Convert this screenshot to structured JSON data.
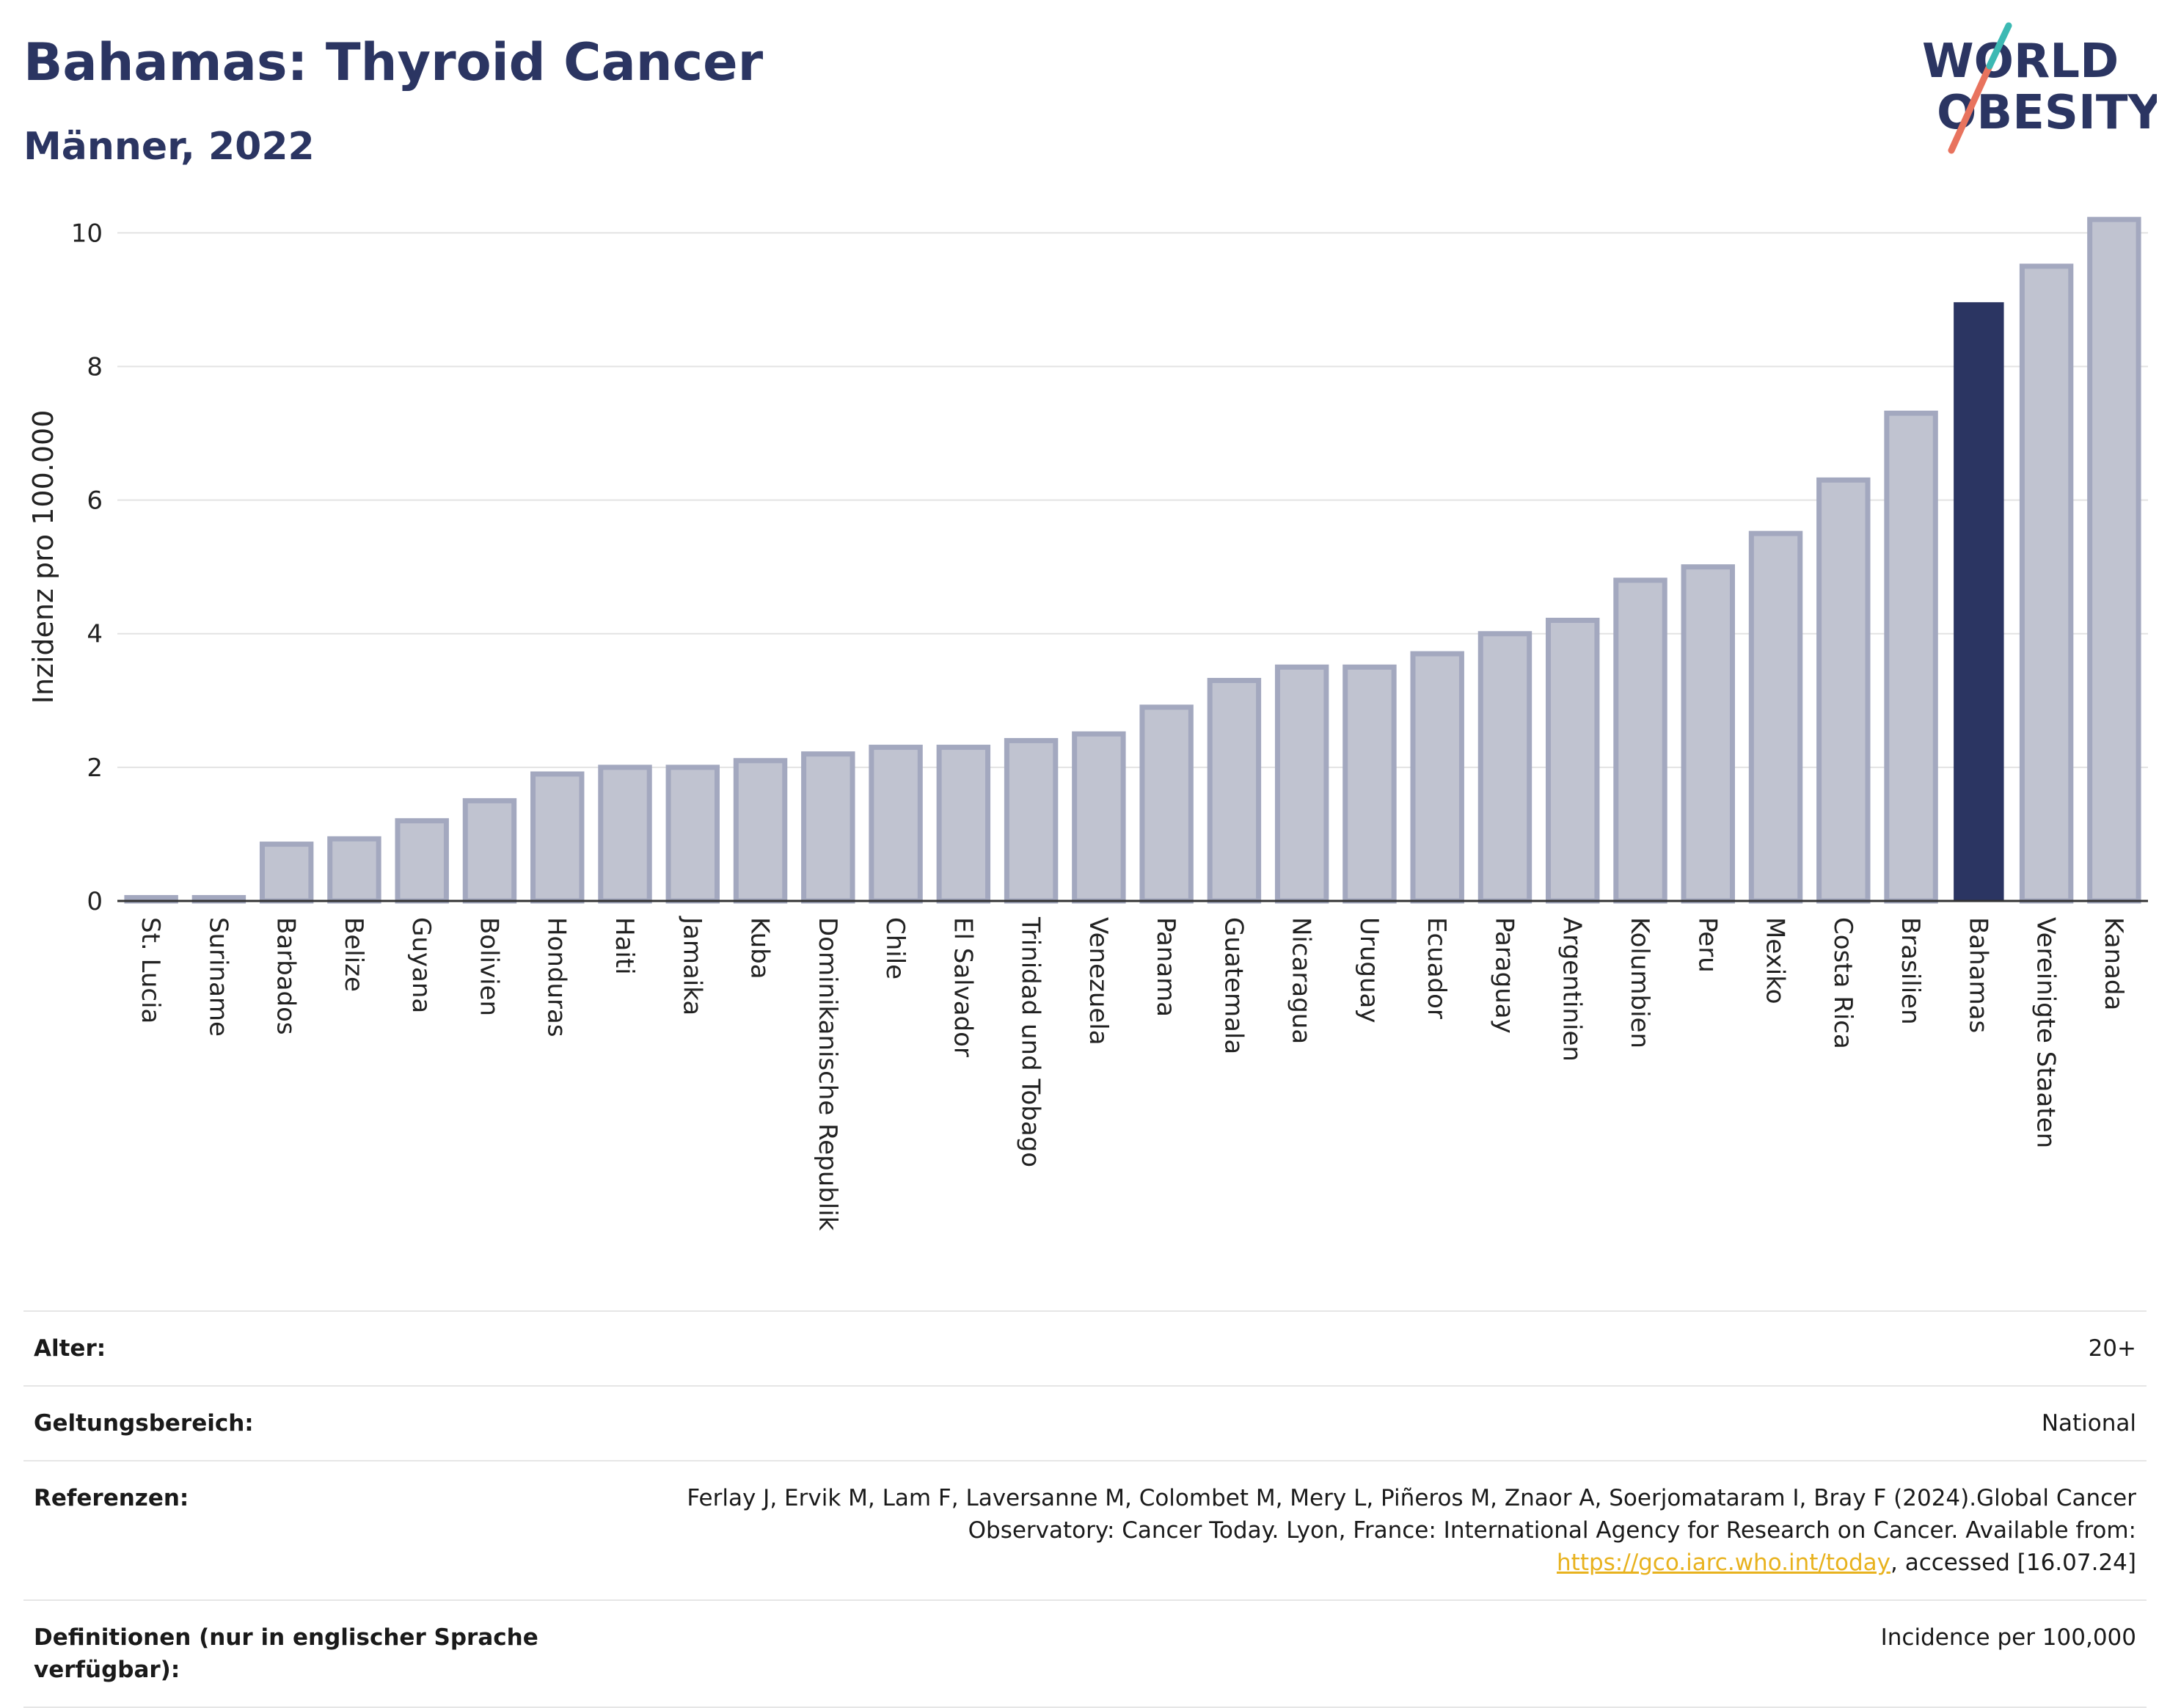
{
  "header": {
    "title": "Bahamas: Thyroid Cancer",
    "subtitle": "Männer, 2022"
  },
  "logo": {
    "line1": "WORLD",
    "line2": "OBESITY"
  },
  "chart_data": {
    "type": "bar",
    "ylabel": "Inzidenz pro 100.000",
    "xlabel": "",
    "ylim": [
      0,
      10.3
    ],
    "yticks": [
      0,
      2,
      4,
      6,
      8,
      10
    ],
    "grid": true,
    "categories": [
      "St. Lucia",
      "Suriname",
      "Barbados",
      "Belize",
      "Guyana",
      "Bolivien",
      "Honduras",
      "Haiti",
      "Jamaika",
      "Kuba",
      "Dominikanische Republik",
      "Chile",
      "El Salvador",
      "Trinidad und Tobago",
      "Venezuela",
      "Panama",
      "Guatemala",
      "Nicaragua",
      "Uruguay",
      "Ecuador",
      "Paraguay",
      "Argentinien",
      "Kolumbien",
      "Peru",
      "Mexiko",
      "Costa Rica",
      "Brasilien",
      "Bahamas",
      "Vereinigte Staaten",
      "Kanada"
    ],
    "values": [
      0.05,
      0.05,
      0.85,
      0.93,
      1.2,
      1.5,
      1.9,
      2.0,
      2.0,
      2.1,
      2.2,
      2.3,
      2.3,
      2.4,
      2.5,
      2.9,
      3.3,
      3.5,
      3.5,
      3.7,
      4.0,
      4.2,
      4.8,
      5.0,
      5.5,
      6.3,
      7.3,
      8.95,
      9.5,
      10.2
    ],
    "highlight": "Bahamas",
    "colors": {
      "highlight": "#2b3562",
      "default_fill": "#c0c3d0",
      "default_stroke": "#a3a8bf"
    }
  },
  "info": {
    "age_label": "Alter:",
    "age_value": "20+",
    "scope_label": "Geltungsbereich:",
    "scope_value": "National",
    "refs_label": "Referenzen:",
    "refs_text": "Ferlay J, Ervik M, Lam F, Laversanne M, Colombet M, Mery L, Piñeros M, Znaor A, Soerjomataram I, Bray F (2024).Global Cancer Observatory: Cancer Today. Lyon, France: International Agency for Research on Cancer. Available from: ",
    "refs_link": "https://gco.iarc.who.int/today",
    "refs_tail": ", accessed [16.07.24]",
    "def_label": "Definitionen (nur in englischer Sprache verfügbar):",
    "def_value": "Incidence per 100,000"
  }
}
